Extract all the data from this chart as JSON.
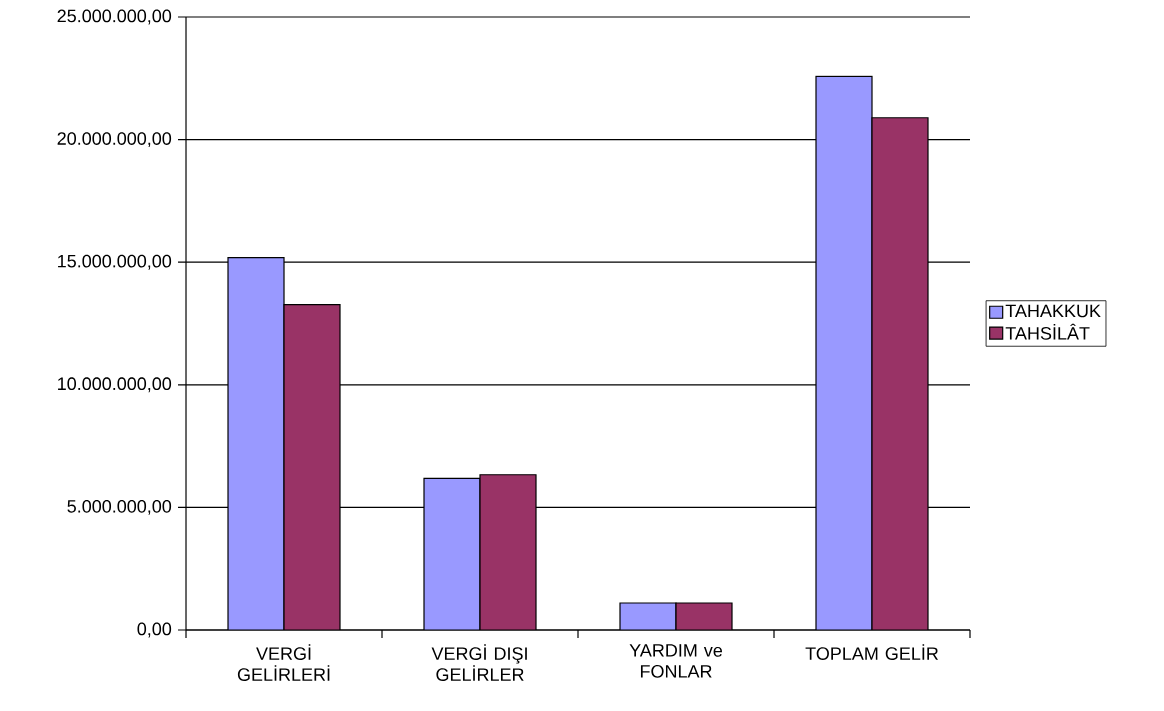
{
  "chart_data": {
    "type": "bar",
    "categories": [
      "VERGİ GELİRLERİ",
      "VERGİ DIŞI GELİRLER",
      "YARDIM ve FONLAR",
      "TOPLAM GELİR"
    ],
    "series": [
      {
        "name": "TAHAKKUK",
        "color": "#9999ff",
        "values": [
          15190000,
          6180000,
          1100000,
          22580000
        ]
      },
      {
        "name": "TAHSİLÂT",
        "color": "#993366",
        "values": [
          13270000,
          6330000,
          1100000,
          20890000
        ]
      }
    ],
    "ylim": [
      0,
      25000000
    ],
    "yticks": [
      {
        "value": 0,
        "label": "0,00"
      },
      {
        "value": 5000000,
        "label": "5.000.000,00"
      },
      {
        "value": 10000000,
        "label": "10.000.000,00"
      },
      {
        "value": 15000000,
        "label": "15.000.000,00"
      },
      {
        "value": 20000000,
        "label": "20.000.000,00"
      },
      {
        "value": 25000000,
        "label": "25.000.000,00"
      }
    ],
    "grid": "y",
    "legend": "right"
  }
}
